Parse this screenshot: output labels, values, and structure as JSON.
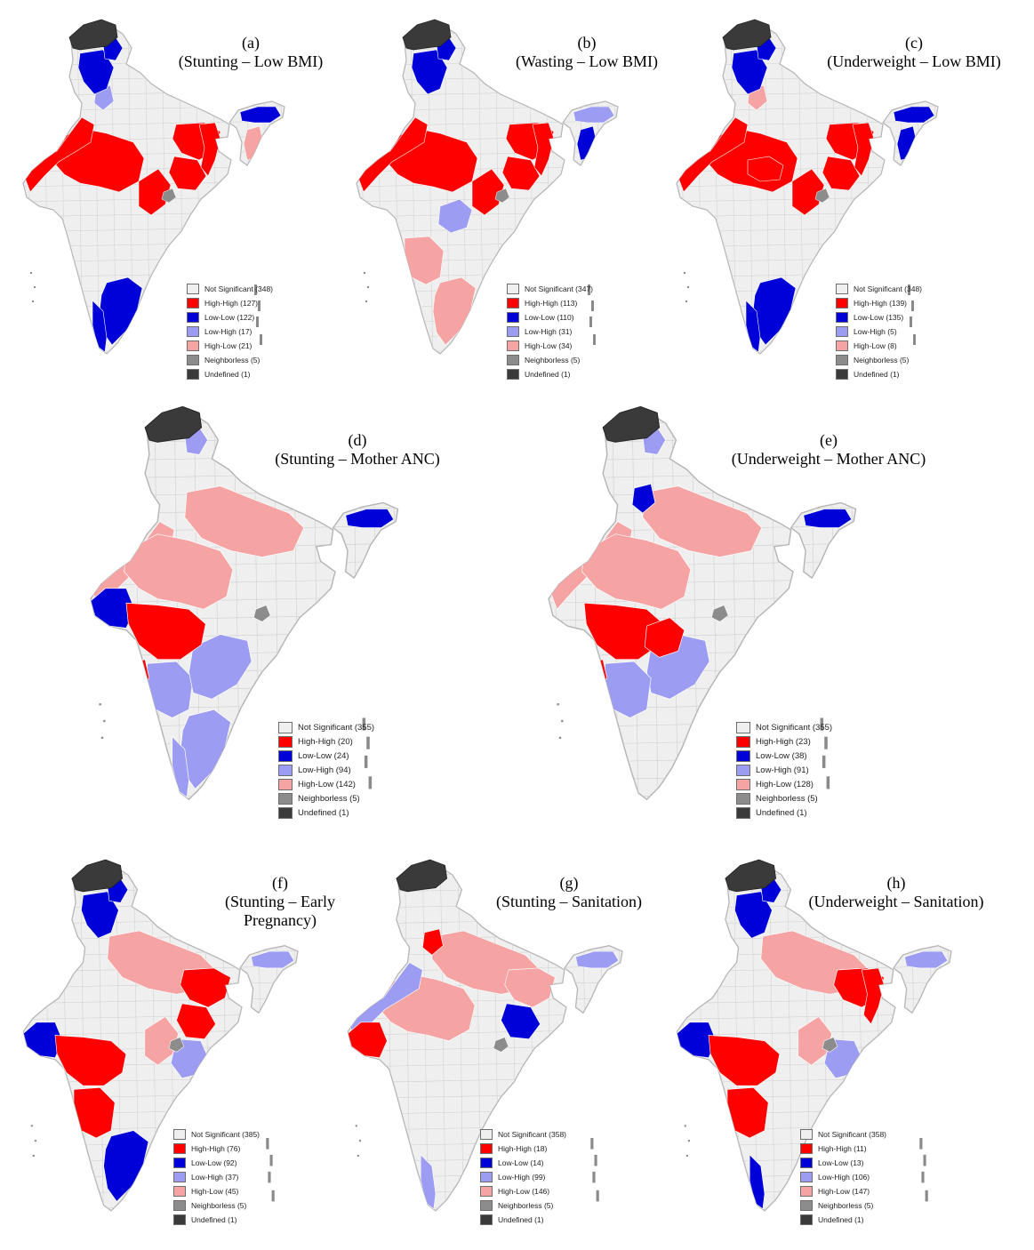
{
  "figure": {
    "panels": [
      {
        "label": "(a)",
        "subtitle": [
          "(Stunting – Low BMI)"
        ],
        "legend": [
          {
            "cls": "ns",
            "text": "Not Significant (348)"
          },
          {
            "cls": "hh",
            "text": "High-High (127)"
          },
          {
            "cls": "ll",
            "text": "Low-Low (122)"
          },
          {
            "cls": "lh",
            "text": "Low-High (17)"
          },
          {
            "cls": "hl",
            "text": "High-Low (21)"
          },
          {
            "cls": "nb",
            "text": "Neighborless (5)"
          },
          {
            "cls": "ud",
            "text": "Undefined (1)"
          }
        ]
      },
      {
        "label": "(b)",
        "subtitle": [
          "(Wasting – Low BMI)"
        ],
        "legend": [
          {
            "cls": "ns",
            "text": "Not Significant (347)"
          },
          {
            "cls": "hh",
            "text": "High-High (113)"
          },
          {
            "cls": "ll",
            "text": "Low-Low (110)"
          },
          {
            "cls": "lh",
            "text": "Low-High (31)"
          },
          {
            "cls": "hl",
            "text": "High-Low (34)"
          },
          {
            "cls": "nb",
            "text": "Neighborless (5)"
          },
          {
            "cls": "ud",
            "text": "Undefined (1)"
          }
        ]
      },
      {
        "label": "(c)",
        "subtitle": [
          "(Underweight – Low BMI)"
        ],
        "legend": [
          {
            "cls": "ns",
            "text": "Not Significant (348)"
          },
          {
            "cls": "hh",
            "text": "High-High (139)"
          },
          {
            "cls": "ll",
            "text": "Low-Low (135)"
          },
          {
            "cls": "lh",
            "text": "Low-High (5)"
          },
          {
            "cls": "hl",
            "text": "High-Low (8)"
          },
          {
            "cls": "nb",
            "text": "Neighborless (5)"
          },
          {
            "cls": "ud",
            "text": "Undefined (1)"
          }
        ]
      },
      {
        "label": "(d)",
        "subtitle": [
          "(Stunting – Mother ANC)"
        ],
        "legend": [
          {
            "cls": "ns",
            "text": "Not Significant (355)"
          },
          {
            "cls": "hh",
            "text": "High-High (20)"
          },
          {
            "cls": "ll",
            "text": "Low-Low (24)"
          },
          {
            "cls": "lh",
            "text": "Low-High (94)"
          },
          {
            "cls": "hl",
            "text": "High-Low (142)"
          },
          {
            "cls": "nb",
            "text": "Neighborless (5)"
          },
          {
            "cls": "ud",
            "text": "Undefined (1)"
          }
        ]
      },
      {
        "label": "(e)",
        "subtitle": [
          "(Underweight – Mother ANC)"
        ],
        "legend": [
          {
            "cls": "ns",
            "text": "Not Significant (355)"
          },
          {
            "cls": "hh",
            "text": "High-High (23)"
          },
          {
            "cls": "ll",
            "text": "Low-Low (38)"
          },
          {
            "cls": "lh",
            "text": "Low-High (91)"
          },
          {
            "cls": "hl",
            "text": "High-Low (128)"
          },
          {
            "cls": "nb",
            "text": "Neighborless (5)"
          },
          {
            "cls": "ud",
            "text": "Undefined (1)"
          }
        ]
      },
      {
        "label": "(f)",
        "subtitle": [
          "(Stunting – Early",
          "Pregnancy)"
        ],
        "legend": [
          {
            "cls": "ns",
            "text": "Not Significant (385)"
          },
          {
            "cls": "hh",
            "text": "High-High (76)"
          },
          {
            "cls": "ll",
            "text": "Low-Low (92)"
          },
          {
            "cls": "lh",
            "text": "Low-High (37)"
          },
          {
            "cls": "hl",
            "text": "High-Low (45)"
          },
          {
            "cls": "nb",
            "text": "Neighborless (5)"
          },
          {
            "cls": "ud",
            "text": "Undefined (1)"
          }
        ]
      },
      {
        "label": "(g)",
        "subtitle": [
          "(Stunting – Sanitation)"
        ],
        "legend": [
          {
            "cls": "ns",
            "text": "Not Significant (358)"
          },
          {
            "cls": "hh",
            "text": "High-High (18)"
          },
          {
            "cls": "ll",
            "text": "Low-Low (14)"
          },
          {
            "cls": "lh",
            "text": "Low-High (99)"
          },
          {
            "cls": "hl",
            "text": "High-Low (146)"
          },
          {
            "cls": "nb",
            "text": "Neighborless (5)"
          },
          {
            "cls": "ud",
            "text": "Undefined (1)"
          }
        ]
      },
      {
        "label": "(h)",
        "subtitle": [
          "(Underweight – Sanitation)"
        ],
        "legend": [
          {
            "cls": "ns",
            "text": "Not Significant (358)"
          },
          {
            "cls": "hh",
            "text": "High-High (11)"
          },
          {
            "cls": "ll",
            "text": "Low-Low (13)"
          },
          {
            "cls": "lh",
            "text": "Low-High (106)"
          },
          {
            "cls": "hl",
            "text": "High-Low (147)"
          },
          {
            "cls": "nb",
            "text": "Neighborless (5)"
          },
          {
            "cls": "ud",
            "text": "Undefined (1)"
          }
        ]
      }
    ],
    "colors": {
      "ns": "#efefef",
      "hh": "#ff0000",
      "ll": "#0000d8",
      "lh": "#9c9cf2",
      "hl": "#f5a3a3",
      "nb": "#8c8c8c",
      "ud": "#3a3a3a",
      "border": "#b4b4b4"
    }
  }
}
